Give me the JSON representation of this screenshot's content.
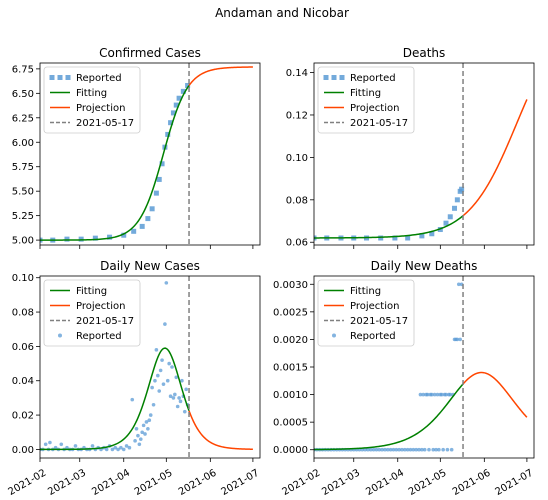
{
  "figure": {
    "suptitle": "Andaman and Nicobar"
  },
  "colors": {
    "reported": "#5b9bd5",
    "fitting": "#008000",
    "projection": "#ff4500",
    "vline": "#808080"
  },
  "chart_data": [
    {
      "id": "confirmed",
      "type": "line",
      "title": "Confirmed Cases",
      "xlabel": "",
      "ylabel": "",
      "x_range": [
        "2021-02-01",
        "2021-07-06"
      ],
      "ylim": [
        4.95,
        6.81
      ],
      "yticks": [
        5.0,
        5.25,
        5.5,
        5.75,
        6.0,
        6.25,
        6.5,
        6.75
      ],
      "ytick_decimals": 2,
      "show_xtick_labels": false,
      "vline_date": "2021-05-17",
      "legend": {
        "position": "top-left",
        "entries": [
          "Reported",
          "Fitting",
          "Projection",
          "2021-05-17"
        ]
      },
      "reported_style": "square",
      "fit_model": "logistic",
      "fitting": {
        "base": 5.0,
        "amp": 1.77,
        "mid": "2021-04-29",
        "tau_days": 8.5,
        "start": "2021-02-01",
        "end": "2021-05-17"
      },
      "projection": {
        "start": "2021-05-17",
        "end": "2021-07-01"
      },
      "reported": [
        {
          "x": "2021-02-01",
          "y": 5.0
        },
        {
          "x": "2021-02-10",
          "y": 5.0
        },
        {
          "x": "2021-02-20",
          "y": 5.01
        },
        {
          "x": "2021-03-02",
          "y": 5.01
        },
        {
          "x": "2021-03-12",
          "y": 5.02
        },
        {
          "x": "2021-03-22",
          "y": 5.03
        },
        {
          "x": "2021-04-01",
          "y": 5.05
        },
        {
          "x": "2021-04-08",
          "y": 5.09
        },
        {
          "x": "2021-04-14",
          "y": 5.14
        },
        {
          "x": "2021-04-18",
          "y": 5.22
        },
        {
          "x": "2021-04-21",
          "y": 5.32
        },
        {
          "x": "2021-04-24",
          "y": 5.48
        },
        {
          "x": "2021-04-26",
          "y": 5.62
        },
        {
          "x": "2021-04-28",
          "y": 5.78
        },
        {
          "x": "2021-04-30",
          "y": 5.95
        },
        {
          "x": "2021-05-02",
          "y": 6.08
        },
        {
          "x": "2021-05-04",
          "y": 6.2
        },
        {
          "x": "2021-05-06",
          "y": 6.3
        },
        {
          "x": "2021-05-08",
          "y": 6.38
        },
        {
          "x": "2021-05-10",
          "y": 6.45
        },
        {
          "x": "2021-05-13",
          "y": 6.52
        },
        {
          "x": "2021-05-16",
          "y": 6.58
        }
      ]
    },
    {
      "id": "deaths",
      "type": "line",
      "title": "Deaths",
      "xlabel": "",
      "ylabel": "",
      "x_range": [
        "2021-02-01",
        "2021-07-06"
      ],
      "ylim": [
        0.0587,
        0.1445
      ],
      "yticks": [
        0.06,
        0.08,
        0.1,
        0.12,
        0.14
      ],
      "ytick_decimals": 2,
      "show_xtick_labels": false,
      "vline_date": "2021-05-17",
      "legend": {
        "position": "top-left",
        "entries": [
          "Reported",
          "Fitting",
          "Projection",
          "2021-05-17"
        ]
      },
      "reported_style": "square",
      "fit_model": "logistic",
      "fitting": {
        "base": 0.062,
        "amp": 0.1086,
        "mid": "2021-06-24",
        "tau_days": 17.0,
        "start": "2021-02-01",
        "end": "2021-05-17"
      },
      "projection": {
        "start": "2021-05-17",
        "end": "2021-07-01"
      },
      "reported": [
        {
          "x": "2021-02-01",
          "y": 0.062
        },
        {
          "x": "2021-02-10",
          "y": 0.062
        },
        {
          "x": "2021-02-20",
          "y": 0.062
        },
        {
          "x": "2021-03-01",
          "y": 0.062
        },
        {
          "x": "2021-03-10",
          "y": 0.062
        },
        {
          "x": "2021-03-20",
          "y": 0.062
        },
        {
          "x": "2021-03-30",
          "y": 0.062
        },
        {
          "x": "2021-04-08",
          "y": 0.062
        },
        {
          "x": "2021-04-18",
          "y": 0.063
        },
        {
          "x": "2021-04-25",
          "y": 0.064
        },
        {
          "x": "2021-05-01",
          "y": 0.066
        },
        {
          "x": "2021-05-05",
          "y": 0.069
        },
        {
          "x": "2021-05-08",
          "y": 0.072
        },
        {
          "x": "2021-05-11",
          "y": 0.076
        },
        {
          "x": "2021-05-13",
          "y": 0.08
        },
        {
          "x": "2021-05-15",
          "y": 0.084
        },
        {
          "x": "2021-05-16",
          "y": 0.085
        }
      ]
    },
    {
      "id": "daily-cases",
      "type": "line",
      "title": "Daily New Cases",
      "xlabel": "",
      "ylabel": "",
      "x_range": [
        "2021-02-01",
        "2021-07-06"
      ],
      "ylim": [
        -0.005,
        0.101
      ],
      "yticks": [
        0.0,
        0.02,
        0.04,
        0.06,
        0.08,
        0.1
      ],
      "ytick_decimals": 2,
      "show_xtick_labels": true,
      "xticks": [
        "2021-02-01",
        "2021-03-01",
        "2021-04-01",
        "2021-05-01",
        "2021-06-01",
        "2021-07-01"
      ],
      "xtick_labels": [
        "2021-02",
        "2021-03",
        "2021-04",
        "2021-05",
        "2021-06",
        "2021-07"
      ],
      "vline_date": "2021-05-17",
      "legend": {
        "position": "top-left",
        "entries": [
          "Fitting",
          "Projection",
          "2021-05-17",
          "Reported"
        ]
      },
      "reported_style": "dot",
      "fit_model": "logistic-derivative",
      "fitting": {
        "amp": 0.059,
        "mid": "2021-04-30",
        "tau_days": 8.0,
        "start": "2021-02-01",
        "end": "2021-05-17"
      },
      "projection": {
        "start": "2021-05-17",
        "end": "2021-07-01"
      },
      "reported": [
        {
          "x": "2021-02-01",
          "y": 0.0
        },
        {
          "x": "2021-02-03",
          "y": 0.0
        },
        {
          "x": "2021-02-05",
          "y": 0.003
        },
        {
          "x": "2021-02-07",
          "y": 0.0
        },
        {
          "x": "2021-02-08",
          "y": 0.004
        },
        {
          "x": "2021-02-10",
          "y": 0.0
        },
        {
          "x": "2021-02-12",
          "y": 0.001
        },
        {
          "x": "2021-02-14",
          "y": 0.0
        },
        {
          "x": "2021-02-16",
          "y": 0.003
        },
        {
          "x": "2021-02-18",
          "y": 0.0
        },
        {
          "x": "2021-02-20",
          "y": 0.001
        },
        {
          "x": "2021-02-22",
          "y": 0.0
        },
        {
          "x": "2021-02-24",
          "y": 0.0
        },
        {
          "x": "2021-02-26",
          "y": 0.002
        },
        {
          "x": "2021-02-28",
          "y": 0.0
        },
        {
          "x": "2021-03-02",
          "y": 0.0
        },
        {
          "x": "2021-03-04",
          "y": 0.001
        },
        {
          "x": "2021-03-06",
          "y": 0.0
        },
        {
          "x": "2021-03-08",
          "y": 0.0
        },
        {
          "x": "2021-03-10",
          "y": 0.002
        },
        {
          "x": "2021-03-12",
          "y": 0.0
        },
        {
          "x": "2021-03-14",
          "y": 0.001
        },
        {
          "x": "2021-03-16",
          "y": 0.0
        },
        {
          "x": "2021-03-18",
          "y": 0.001
        },
        {
          "x": "2021-03-20",
          "y": 0.0
        },
        {
          "x": "2021-03-22",
          "y": 0.002
        },
        {
          "x": "2021-03-24",
          "y": 0.0
        },
        {
          "x": "2021-03-26",
          "y": 0.001
        },
        {
          "x": "2021-03-28",
          "y": 0.0
        },
        {
          "x": "2021-03-30",
          "y": 0.001
        },
        {
          "x": "2021-04-01",
          "y": 0.0
        },
        {
          "x": "2021-04-03",
          "y": 0.002
        },
        {
          "x": "2021-04-05",
          "y": 0.001
        },
        {
          "x": "2021-04-07",
          "y": 0.029
        },
        {
          "x": "2021-04-09",
          "y": 0.005
        },
        {
          "x": "2021-04-10",
          "y": 0.012
        },
        {
          "x": "2021-04-11",
          "y": 0.008
        },
        {
          "x": "2021-04-12",
          "y": 0.003
        },
        {
          "x": "2021-04-13",
          "y": 0.006
        },
        {
          "x": "2021-04-14",
          "y": 0.01
        },
        {
          "x": "2021-04-15",
          "y": 0.014
        },
        {
          "x": "2021-04-16",
          "y": 0.009
        },
        {
          "x": "2021-04-17",
          "y": 0.016
        },
        {
          "x": "2021-04-18",
          "y": 0.012
        },
        {
          "x": "2021-04-19",
          "y": 0.017
        },
        {
          "x": "2021-04-20",
          "y": 0.02
        },
        {
          "x": "2021-04-21",
          "y": 0.036
        },
        {
          "x": "2021-04-22",
          "y": 0.026
        },
        {
          "x": "2021-04-23",
          "y": 0.04
        },
        {
          "x": "2021-04-24",
          "y": 0.058
        },
        {
          "x": "2021-04-25",
          "y": 0.043
        },
        {
          "x": "2021-04-26",
          "y": 0.034
        },
        {
          "x": "2021-04-27",
          "y": 0.046
        },
        {
          "x": "2021-04-28",
          "y": 0.052
        },
        {
          "x": "2021-04-29",
          "y": 0.038
        },
        {
          "x": "2021-04-30",
          "y": 0.073
        },
        {
          "x": "2021-05-01",
          "y": 0.097
        },
        {
          "x": "2021-05-02",
          "y": 0.04
        },
        {
          "x": "2021-05-03",
          "y": 0.05
        },
        {
          "x": "2021-05-04",
          "y": 0.031
        },
        {
          "x": "2021-05-05",
          "y": 0.048
        },
        {
          "x": "2021-05-06",
          "y": 0.03
        },
        {
          "x": "2021-05-07",
          "y": 0.032
        },
        {
          "x": "2021-05-08",
          "y": 0.042
        },
        {
          "x": "2021-05-09",
          "y": 0.025
        },
        {
          "x": "2021-05-10",
          "y": 0.03
        },
        {
          "x": "2021-05-11",
          "y": 0.028
        },
        {
          "x": "2021-05-12",
          "y": 0.04
        },
        {
          "x": "2021-05-13",
          "y": 0.031
        },
        {
          "x": "2021-05-14",
          "y": 0.022
        },
        {
          "x": "2021-05-15",
          "y": 0.035
        },
        {
          "x": "2021-05-16",
          "y": 0.026
        }
      ]
    },
    {
      "id": "daily-deaths",
      "type": "line",
      "title": "Daily New Deaths",
      "xlabel": "",
      "ylabel": "",
      "x_range": [
        "2021-02-01",
        "2021-07-06"
      ],
      "ylim": [
        -0.00015,
        0.00315
      ],
      "yticks": [
        0.0,
        0.0005,
        0.001,
        0.0015,
        0.002,
        0.0025,
        0.003
      ],
      "ytick_decimals": 4,
      "show_xtick_labels": true,
      "xticks": [
        "2021-02-01",
        "2021-03-01",
        "2021-04-01",
        "2021-05-01",
        "2021-06-01",
        "2021-07-01"
      ],
      "xtick_labels": [
        "2021-02",
        "2021-03",
        "2021-04",
        "2021-05",
        "2021-06",
        "2021-07"
      ],
      "vline_date": "2021-05-17",
      "legend": {
        "position": "top-left",
        "entries": [
          "Fitting",
          "Projection",
          "2021-05-17",
          "Reported"
        ]
      },
      "reported_style": "dot",
      "fit_model": "logistic-derivative",
      "fitting": {
        "amp": 0.0014,
        "mid": "2021-05-30",
        "tau_days": 16.0,
        "start": "2021-02-01",
        "end": "2021-05-17"
      },
      "projection": {
        "start": "2021-05-17",
        "end": "2021-07-01"
      },
      "reported": [
        {
          "x": "2021-02-01",
          "y": 0.0
        },
        {
          "x": "2021-02-03",
          "y": 0.0
        },
        {
          "x": "2021-02-05",
          "y": 0.0
        },
        {
          "x": "2021-02-07",
          "y": 0.0
        },
        {
          "x": "2021-02-09",
          "y": 0.0
        },
        {
          "x": "2021-02-11",
          "y": 0.0
        },
        {
          "x": "2021-02-13",
          "y": 0.0
        },
        {
          "x": "2021-02-15",
          "y": 0.0
        },
        {
          "x": "2021-02-17",
          "y": 0.0
        },
        {
          "x": "2021-02-19",
          "y": 0.0
        },
        {
          "x": "2021-02-21",
          "y": 0.0
        },
        {
          "x": "2021-02-23",
          "y": 0.0
        },
        {
          "x": "2021-02-25",
          "y": 0.0
        },
        {
          "x": "2021-02-27",
          "y": 0.0
        },
        {
          "x": "2021-03-01",
          "y": 0.0
        },
        {
          "x": "2021-03-03",
          "y": 0.0
        },
        {
          "x": "2021-03-05",
          "y": 0.0
        },
        {
          "x": "2021-03-07",
          "y": 0.0
        },
        {
          "x": "2021-03-09",
          "y": 0.0
        },
        {
          "x": "2021-03-11",
          "y": 0.0
        },
        {
          "x": "2021-03-13",
          "y": 0.0
        },
        {
          "x": "2021-03-15",
          "y": 0.0
        },
        {
          "x": "2021-03-17",
          "y": 0.0
        },
        {
          "x": "2021-03-19",
          "y": 0.0
        },
        {
          "x": "2021-03-21",
          "y": 0.0
        },
        {
          "x": "2021-03-23",
          "y": 0.0
        },
        {
          "x": "2021-03-25",
          "y": 0.0
        },
        {
          "x": "2021-03-27",
          "y": 0.0
        },
        {
          "x": "2021-03-29",
          "y": 0.0
        },
        {
          "x": "2021-03-31",
          "y": 0.0
        },
        {
          "x": "2021-04-02",
          "y": 0.0
        },
        {
          "x": "2021-04-04",
          "y": 0.0
        },
        {
          "x": "2021-04-06",
          "y": 0.0
        },
        {
          "x": "2021-04-08",
          "y": 0.0
        },
        {
          "x": "2021-04-10",
          "y": 0.0
        },
        {
          "x": "2021-04-12",
          "y": 0.0
        },
        {
          "x": "2021-04-14",
          "y": 0.0
        },
        {
          "x": "2021-04-16",
          "y": 0.0
        },
        {
          "x": "2021-04-17",
          "y": 0.001
        },
        {
          "x": "2021-04-18",
          "y": 0.0
        },
        {
          "x": "2021-04-19",
          "y": 0.001
        },
        {
          "x": "2021-04-20",
          "y": 0.0
        },
        {
          "x": "2021-04-21",
          "y": 0.001
        },
        {
          "x": "2021-04-22",
          "y": 0.001
        },
        {
          "x": "2021-04-23",
          "y": 0.0
        },
        {
          "x": "2021-04-24",
          "y": 0.001
        },
        {
          "x": "2021-04-25",
          "y": 0.001
        },
        {
          "x": "2021-04-26",
          "y": 0.0
        },
        {
          "x": "2021-04-27",
          "y": 0.001
        },
        {
          "x": "2021-04-28",
          "y": 0.0
        },
        {
          "x": "2021-04-29",
          "y": 0.001
        },
        {
          "x": "2021-04-30",
          "y": 0.0
        },
        {
          "x": "2021-05-01",
          "y": 0.001
        },
        {
          "x": "2021-05-02",
          "y": 0.001
        },
        {
          "x": "2021-05-03",
          "y": 0.0
        },
        {
          "x": "2021-05-04",
          "y": 0.001
        },
        {
          "x": "2021-05-05",
          "y": 0.001
        },
        {
          "x": "2021-05-06",
          "y": 0.0
        },
        {
          "x": "2021-05-07",
          "y": 0.001
        },
        {
          "x": "2021-05-08",
          "y": 0.001
        },
        {
          "x": "2021-05-09",
          "y": 0.0
        },
        {
          "x": "2021-05-10",
          "y": 0.001
        },
        {
          "x": "2021-05-11",
          "y": 0.002
        },
        {
          "x": "2021-05-12",
          "y": 0.002
        },
        {
          "x": "2021-05-13",
          "y": 0.002
        },
        {
          "x": "2021-05-14",
          "y": 0.003
        },
        {
          "x": "2021-05-15",
          "y": 0.002
        },
        {
          "x": "2021-05-16",
          "y": 0.003
        }
      ]
    }
  ]
}
